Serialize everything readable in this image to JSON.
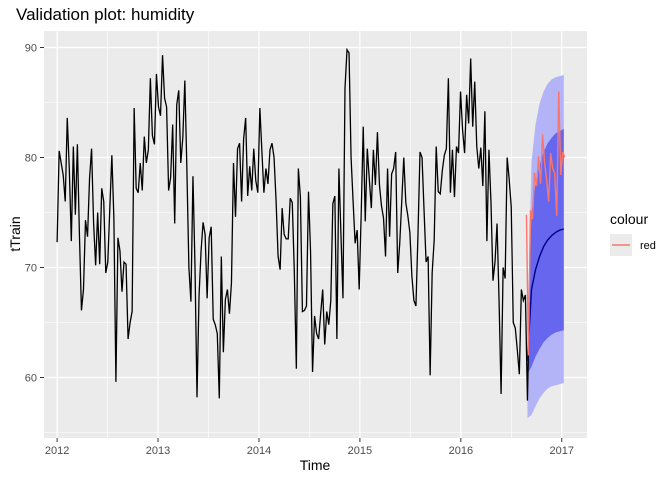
{
  "chart_data": {
    "type": "line",
    "title": "Validation plot: humidity",
    "xlabel": "Time",
    "ylabel": "tTrain",
    "xlim": [
      2011.87,
      2017.25
    ],
    "ylim": [
      54.5,
      91.5
    ],
    "x_ticks": [
      2012,
      2013,
      2014,
      2015,
      2016,
      2017
    ],
    "y_ticks": [
      60,
      70,
      80,
      90
    ],
    "grid": true,
    "legend": {
      "title": "colour",
      "position": "right",
      "entries": [
        {
          "label": "red",
          "color": "#F8766D"
        }
      ]
    },
    "colors": {
      "panel": "#EBEBEB",
      "grid": "#FFFFFF",
      "train": "#000000",
      "validation": "#F8766D",
      "forecast": "#00008B",
      "band80": "#6666EE",
      "band95": "#B3B3F7"
    },
    "train": {
      "start": 2012.0,
      "step_weeks": 1,
      "end": 2016.68,
      "values": [
        72.3,
        80.6,
        79.5,
        78.4,
        76.0,
        83.6,
        79.0,
        72.4,
        81.0,
        74.8,
        81.2,
        73.0,
        66.1,
        68.0,
        74.3,
        72.8,
        78.1,
        80.8,
        74.0,
        70.2,
        75.0,
        70.3,
        77.2,
        76.0,
        69.5,
        70.5,
        75.4,
        80.2,
        74.5,
        59.6,
        72.7,
        71.5,
        67.8,
        70.5,
        70.3,
        63.5,
        65.0,
        66.0,
        84.5,
        77.2,
        76.8,
        79.5,
        77.0,
        81.9,
        79.5,
        80.7,
        87.2,
        82.0,
        81.2,
        87.6,
        84.6,
        83.8,
        89.3,
        85.4,
        84.6,
        77.0,
        78.2,
        83.0,
        74.0,
        84.8,
        86.1,
        79.5,
        81.8,
        87.0,
        79.0,
        70.0,
        66.9,
        78.3,
        70.2,
        58.2,
        67.4,
        71.5,
        74.1,
        73.0,
        67.2,
        72.7,
        73.7,
        65.3,
        64.8,
        64.0,
        58.1,
        71.0,
        62.3,
        67.1,
        68.0,
        65.8,
        68.6,
        79.5,
        74.6,
        80.8,
        81.3,
        76.0,
        81.7,
        83.6,
        76.5,
        79.2,
        77.0,
        80.8,
        77.9,
        76.8,
        84.5,
        80.6,
        76.8,
        79.0,
        77.6,
        80.7,
        81.3,
        80.0,
        76.1,
        71.0,
        69.8,
        75.4,
        73.0,
        72.6,
        72.6,
        76.3,
        75.9,
        69.6,
        60.8,
        79.0,
        76.4,
        66.0,
        66.1,
        66.5,
        76.9,
        71.5,
        60.5,
        65.6,
        64.0,
        63.5,
        65.8,
        68.0,
        63.0,
        66.0,
        64.8,
        67.0,
        75.8,
        76.5,
        63.5,
        79.0,
        73.0,
        67.2,
        86.3,
        89.8,
        89.5,
        80.0,
        76.0,
        72.2,
        73.4,
        68.0,
        75.0,
        82.8,
        74.2,
        80.8,
        78.0,
        75.4,
        80.7,
        77.5,
        82.3,
        77.5,
        75.6,
        74.5,
        71.0,
        79.0,
        72.8,
        78.5,
        79.0,
        80.5,
        69.5,
        72.2,
        76.0,
        80.0,
        75.9,
        74.7,
        73.2,
        69.2,
        67.0,
        66.5,
        73.0,
        80.5,
        80.0,
        75.2,
        70.5,
        71.0,
        60.2,
        69.5,
        72.5,
        81.0,
        76.9,
        76.7,
        78.8,
        80.2,
        80.8,
        87.2,
        76.8,
        80.7,
        76.4,
        81.0,
        80.4,
        86.0,
        82.5,
        80.4,
        85.7,
        83.1,
        89.0,
        82.8,
        86.9,
        81.0,
        79.0,
        80.9,
        77.4,
        84.2,
        72.4,
        80.7,
        76.0,
        68.8,
        70.5,
        74.0,
        67.0,
        58.5,
        70.0,
        69.0,
        80.0,
        78.0,
        75.5,
        65.0,
        64.5,
        62.5,
        60.3,
        68.0,
        67.0,
        67.5,
        57.9,
        66.8
      ]
    },
    "validation": {
      "x": [
        2016.65,
        2016.67,
        2016.69,
        2016.71,
        2016.73,
        2016.75,
        2016.77,
        2016.79,
        2016.81,
        2016.83,
        2016.85,
        2016.87,
        2016.89,
        2016.91,
        2016.93,
        2016.95,
        2016.97,
        2016.99,
        2017.01,
        2017.03
      ],
      "y": [
        74.8,
        62.0,
        75.2,
        74.4,
        78.6,
        77.4,
        80.1,
        77.6,
        82.1,
        79.5,
        78.0,
        76.0,
        80.4,
        79.0,
        78.6,
        74.7,
        86.0,
        78.4,
        80.5,
        80.0
      ]
    },
    "forecast": {
      "x": [
        2016.66,
        2016.7,
        2016.74,
        2016.78,
        2016.82,
        2016.86,
        2016.9,
        2016.94,
        2016.98,
        2017.02
      ],
      "mean": [
        61.5,
        68.0,
        69.8,
        71.0,
        71.9,
        72.5,
        72.9,
        73.2,
        73.4,
        73.5
      ],
      "lo80": [
        60.3,
        61.0,
        61.9,
        62.6,
        63.2,
        63.6,
        63.9,
        64.1,
        64.2,
        64.3
      ],
      "hi80": [
        62.8,
        74.9,
        77.6,
        79.3,
        80.5,
        81.3,
        81.8,
        82.2,
        82.4,
        82.6
      ],
      "lo95": [
        56.3,
        56.6,
        57.4,
        58.1,
        58.6,
        59.0,
        59.2,
        59.3,
        59.4,
        59.5
      ],
      "hi95": [
        63.8,
        79.6,
        83.0,
        84.9,
        86.0,
        86.7,
        87.1,
        87.3,
        87.4,
        87.5
      ]
    }
  }
}
